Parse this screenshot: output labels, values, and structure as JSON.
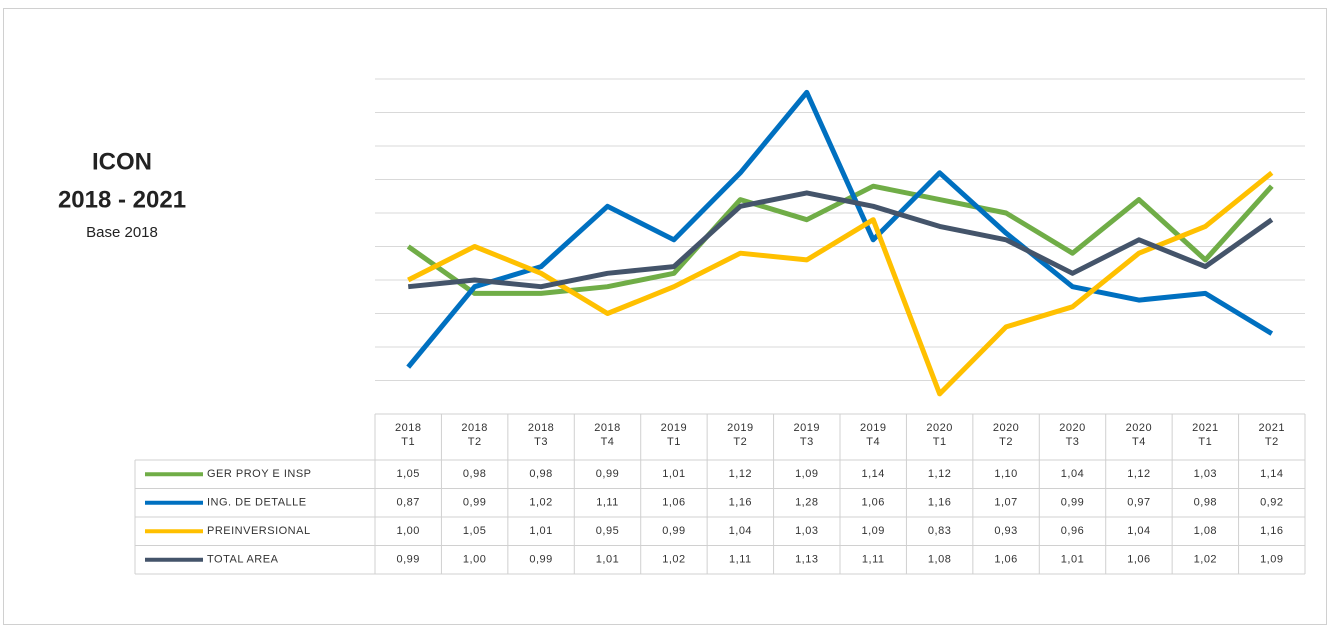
{
  "chart_data": {
    "type": "line",
    "title": "ICON",
    "subtitle": "2018 - 2021",
    "note": "Base 2018",
    "categories": [
      "2018\nT1",
      "2018\nT2",
      "2018\nT3",
      "2018\nT4",
      "2019\nT1",
      "2019\nT2",
      "2019\nT3",
      "2019\nT4",
      "2020\nT1",
      "2020\nT2",
      "2020\nT3",
      "2020\nT4",
      "2021\nT1",
      "2021\nT2"
    ],
    "ylim": [
      0.8,
      1.3
    ],
    "yticks": [
      0.85,
      0.9,
      0.95,
      1.0,
      1.05,
      1.1,
      1.15,
      1.2,
      1.25,
      1.3
    ],
    "grid": true,
    "series": [
      {
        "name": "GER PROY E INSP",
        "color": "#70ad47",
        "values": [
          1.05,
          0.98,
          0.98,
          0.99,
          1.01,
          1.12,
          1.09,
          1.14,
          1.12,
          1.1,
          1.04,
          1.12,
          1.03,
          1.14
        ],
        "value_labels": [
          "1,05",
          "0,98",
          "0,98",
          "0,99",
          "1,01",
          "1,12",
          "1,09",
          "1,14",
          "1,12",
          "1,10",
          "1,04",
          "1,12",
          "1,03",
          "1,14"
        ]
      },
      {
        "name": "ING. DE DETALLE",
        "color": "#0070c0",
        "values": [
          0.87,
          0.99,
          1.02,
          1.11,
          1.06,
          1.16,
          1.28,
          1.06,
          1.16,
          1.07,
          0.99,
          0.97,
          0.98,
          0.92
        ],
        "value_labels": [
          "0,87",
          "0,99",
          "1,02",
          "1,11",
          "1,06",
          "1,16",
          "1,28",
          "1,06",
          "1,16",
          "1,07",
          "0,99",
          "0,97",
          "0,98",
          "0,92"
        ]
      },
      {
        "name": "PREINVERSIONAL",
        "color": "#ffc000",
        "values": [
          1.0,
          1.05,
          1.01,
          0.95,
          0.99,
          1.04,
          1.03,
          1.09,
          0.83,
          0.93,
          0.96,
          1.04,
          1.08,
          1.16
        ],
        "value_labels": [
          "1,00",
          "1,05",
          "1,01",
          "0,95",
          "0,99",
          "1,04",
          "1,03",
          "1,09",
          "0,83",
          "0,93",
          "0,96",
          "1,04",
          "1,08",
          "1,16"
        ]
      },
      {
        "name": "TOTAL AREA",
        "color": "#44546a",
        "values": [
          0.99,
          1.0,
          0.99,
          1.01,
          1.02,
          1.11,
          1.13,
          1.11,
          1.08,
          1.06,
          1.01,
          1.06,
          1.02,
          1.09
        ],
        "value_labels": [
          "0,99",
          "1,00",
          "0,99",
          "1,01",
          "1,02",
          "1,11",
          "1,13",
          "1,11",
          "1,08",
          "1,06",
          "1,01",
          "1,06",
          "1,02",
          "1,09"
        ]
      }
    ]
  }
}
